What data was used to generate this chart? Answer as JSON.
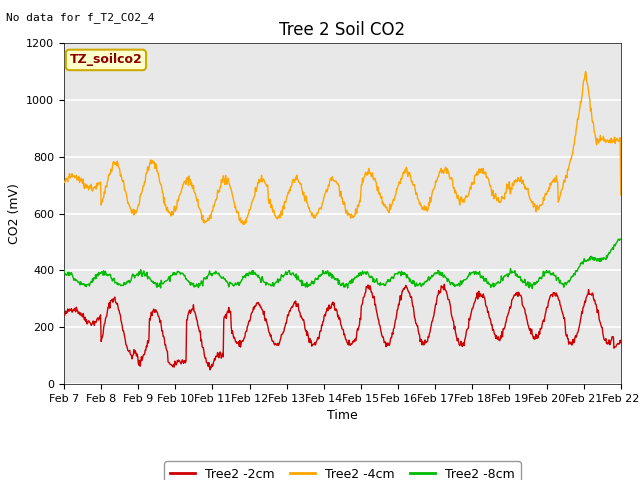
{
  "title": "Tree 2 Soil CO2",
  "no_data_text": "No data for f_T2_CO2_4",
  "ylabel": "CO2 (mV)",
  "xlabel": "Time",
  "ylim": [
    0,
    1200
  ],
  "yticks": [
    0,
    200,
    400,
    600,
    800,
    1000,
    1200
  ],
  "xtick_labels": [
    "Feb 7",
    "Feb 8",
    "Feb 9",
    "Feb 10",
    "Feb 11",
    "Feb 12",
    "Feb 13",
    "Feb 14",
    "Feb 15",
    "Feb 16",
    "Feb 17",
    "Feb 18",
    "Feb 19",
    "Feb 20",
    "Feb 21",
    "Feb 22"
  ],
  "legend_label": "TZ_soilco2",
  "plot_bg_color": "#e8e8e8",
  "fig_bg_color": "#ffffff",
  "series": {
    "red": {
      "label": "Tree2 -2cm",
      "color": "#cc0000"
    },
    "orange": {
      "label": "Tree2 -4cm",
      "color": "#ffa500"
    },
    "green": {
      "label": "Tree2 -8cm",
      "color": "#00bb00"
    }
  },
  "title_fontsize": 12,
  "axis_label_fontsize": 9,
  "tick_fontsize": 8,
  "legend_fontsize": 9,
  "nodata_fontsize": 8,
  "tz_fontsize": 9
}
